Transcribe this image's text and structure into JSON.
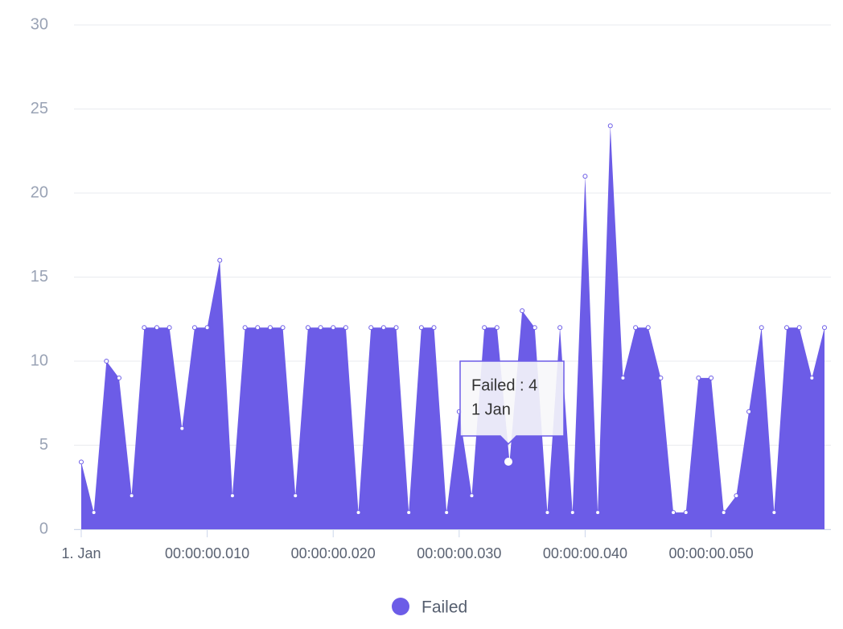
{
  "chart_data": {
    "type": "area",
    "x": [
      0,
      1,
      2,
      3,
      4,
      5,
      6,
      7,
      8,
      9,
      10,
      11,
      12,
      13,
      14,
      15,
      16,
      17,
      18,
      19,
      20,
      21,
      22,
      23,
      24,
      25,
      26,
      27,
      28,
      29,
      30,
      31,
      32,
      33,
      34,
      35,
      36,
      37,
      38,
      39,
      40,
      41,
      42,
      43,
      44,
      45,
      46,
      47,
      48,
      49,
      50,
      51,
      52,
      53,
      54,
      55,
      56,
      57,
      58,
      59
    ],
    "series": [
      {
        "name": "Failed",
        "color": "#6c5ce7",
        "values": [
          4,
          1,
          10,
          9,
          2,
          12,
          12,
          12,
          6,
          12,
          12,
          16,
          2,
          12,
          12,
          12,
          12,
          2,
          12,
          12,
          12,
          12,
          1,
          12,
          12,
          12,
          1,
          12,
          12,
          1,
          7,
          2,
          12,
          12,
          4,
          13,
          12,
          1,
          12,
          1,
          21,
          1,
          24,
          9,
          12,
          12,
          9,
          1,
          1,
          9,
          9,
          1,
          2,
          7,
          12,
          1,
          12,
          12,
          9,
          12
        ]
      }
    ],
    "xlim": [
      0,
      59
    ],
    "xticks": [
      {
        "value": 0,
        "label": "1. Jan"
      },
      {
        "value": 10,
        "label": "00:00:00.010"
      },
      {
        "value": 20,
        "label": "00:00:00.020"
      },
      {
        "value": 30,
        "label": "00:00:00.030"
      },
      {
        "value": 40,
        "label": "00:00:00.040"
      },
      {
        "value": 50,
        "label": "00:00:00.050"
      }
    ],
    "ylim": [
      0,
      30
    ],
    "yticks": [
      0,
      5,
      10,
      15,
      20,
      25,
      30
    ],
    "grid": true,
    "legend": "bottom",
    "tooltip": {
      "lines": [
        "Failed : 4",
        "1 Jan"
      ]
    }
  }
}
